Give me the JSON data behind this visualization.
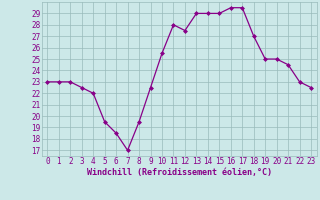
{
  "x": [
    0,
    1,
    2,
    3,
    4,
    5,
    6,
    7,
    8,
    9,
    10,
    11,
    12,
    13,
    14,
    15,
    16,
    17,
    18,
    19,
    20,
    21,
    22,
    23
  ],
  "y": [
    23,
    23,
    23,
    22.5,
    22,
    19.5,
    18.5,
    17,
    19.5,
    22.5,
    25.5,
    28,
    27.5,
    29,
    29,
    29,
    29.5,
    29.5,
    27,
    25,
    25,
    24.5,
    23,
    22.5
  ],
  "line_color": "#880088",
  "marker": "D",
  "marker_size": 2.0,
  "bg_color": "#cce8e8",
  "grid_color": "#99bbbb",
  "ylabel_ticks": [
    17,
    18,
    19,
    20,
    21,
    22,
    23,
    24,
    25,
    26,
    27,
    28,
    29
  ],
  "ylim": [
    16.5,
    30.0
  ],
  "xlim": [
    -0.5,
    23.5
  ],
  "xlabel": "Windchill (Refroidissement éolien,°C)",
  "tick_label_color": "#880088",
  "axis_label_color": "#880088",
  "font_name": "monospace",
  "tick_fontsize": 5.5,
  "xlabel_fontsize": 6.0,
  "linewidth": 0.9
}
